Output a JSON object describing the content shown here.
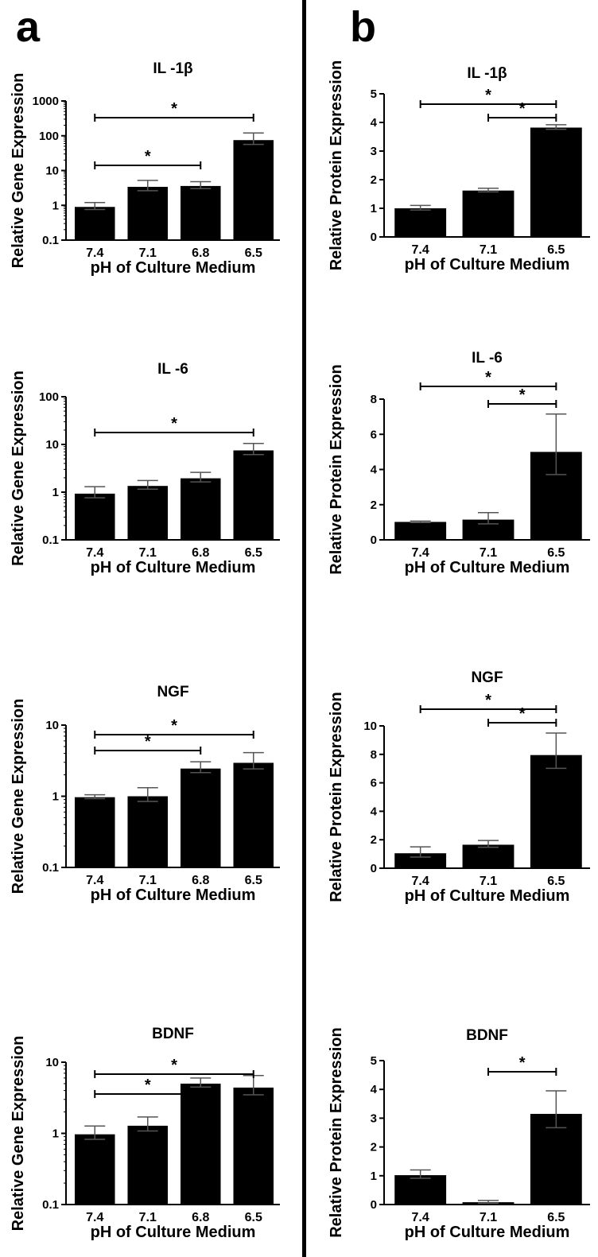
{
  "panels": [
    {
      "label": "a"
    },
    {
      "label": "b"
    }
  ],
  "chart_data": [
    {
      "panel": "a",
      "type": "bar",
      "yscale": "log",
      "title": "IL -1β",
      "ylabel": "Relative Gene Expression",
      "xlabel": "pH of Culture Medium",
      "categories": [
        "7.4",
        "7.1",
        "6.8",
        "6.5"
      ],
      "values": [
        0.9,
        3.4,
        3.6,
        75
      ],
      "errors": [
        1.2,
        5.2,
        4.8,
        120
      ],
      "ylim": [
        0.1,
        1000
      ],
      "yticks": [
        "0.1",
        "1",
        "10",
        "100",
        "1000"
      ],
      "significance": [
        {
          "from": 0,
          "to": 3,
          "label": "*"
        },
        {
          "from": 0,
          "to": 2,
          "label": "*"
        }
      ]
    },
    {
      "panel": "b",
      "type": "bar",
      "yscale": "linear",
      "title": "IL -1β",
      "ylabel": "Relative Protein Expression",
      "xlabel": "pH of Culture Medium",
      "categories": [
        "7.4",
        "7.1",
        "6.5"
      ],
      "values": [
        1.0,
        1.62,
        3.82
      ],
      "errors": [
        1.1,
        1.7,
        3.92
      ],
      "ylim": [
        0,
        5
      ],
      "yticks": [
        "0",
        "1",
        "2",
        "3",
        "4",
        "5"
      ],
      "significance": [
        {
          "from": 0,
          "to": 2,
          "label": "*"
        },
        {
          "from": 1,
          "to": 2,
          "label": "*"
        }
      ]
    },
    {
      "panel": "a",
      "type": "bar",
      "yscale": "log",
      "title": "IL -6",
      "ylabel": "Relative Gene Expression",
      "xlabel": "pH of Culture Medium",
      "categories": [
        "7.4",
        "7.1",
        "6.8",
        "6.5"
      ],
      "values": [
        0.93,
        1.35,
        1.95,
        7.5
      ],
      "errors": [
        1.3,
        1.75,
        2.6,
        10.5
      ],
      "ylim": [
        0.1,
        100
      ],
      "yticks": [
        "0.1",
        "1",
        "10",
        "100"
      ],
      "significance": [
        {
          "from": 0,
          "to": 3,
          "label": "*"
        }
      ]
    },
    {
      "panel": "b",
      "type": "bar",
      "yscale": "linear",
      "title": "IL -6",
      "ylabel": "Relative Protein Expression",
      "xlabel": "pH of Culture Medium",
      "categories": [
        "7.4",
        "7.1",
        "6.5"
      ],
      "values": [
        1.02,
        1.15,
        5.0
      ],
      "errors": [
        1.07,
        1.55,
        7.15
      ],
      "ylim": [
        0,
        8
      ],
      "yticks": [
        "0",
        "2",
        "4",
        "6",
        "8"
      ],
      "significance": [
        {
          "from": 0,
          "to": 2,
          "label": "*"
        },
        {
          "from": 1,
          "to": 2,
          "label": "*"
        }
      ]
    },
    {
      "panel": "a",
      "type": "bar",
      "yscale": "log",
      "title": "NGF",
      "ylabel": "Relative Gene Expression",
      "xlabel": "pH of Culture Medium",
      "categories": [
        "7.4",
        "7.1",
        "6.8",
        "6.5"
      ],
      "values": [
        0.97,
        1.0,
        2.45,
        2.95
      ],
      "errors": [
        1.05,
        1.32,
        3.05,
        4.1
      ],
      "ylim": [
        0.1,
        10
      ],
      "yticks": [
        "0.1",
        "1",
        "10"
      ],
      "significance": [
        {
          "from": 0,
          "to": 3,
          "label": "*"
        },
        {
          "from": 0,
          "to": 2,
          "label": "*"
        }
      ]
    },
    {
      "panel": "b",
      "type": "bar",
      "yscale": "linear",
      "title": "NGF",
      "ylabel": "Relative Protein Expression",
      "xlabel": "pH of Culture Medium",
      "categories": [
        "7.4",
        "7.1",
        "6.5"
      ],
      "values": [
        1.05,
        1.65,
        7.95
      ],
      "errors": [
        1.5,
        1.95,
        9.5
      ],
      "ylim": [
        0,
        10
      ],
      "yticks": [
        "0",
        "2",
        "4",
        "6",
        "8",
        "10"
      ],
      "significance": [
        {
          "from": 0,
          "to": 2,
          "label": "*"
        },
        {
          "from": 1,
          "to": 2,
          "label": "*"
        }
      ]
    },
    {
      "panel": "a",
      "type": "bar",
      "yscale": "log",
      "title": "BDNF",
      "ylabel": "Relative Gene Expression",
      "xlabel": "pH of Culture Medium",
      "categories": [
        "7.4",
        "7.1",
        "6.8",
        "6.5"
      ],
      "values": [
        0.97,
        1.28,
        5.0,
        4.4
      ],
      "errors": [
        1.27,
        1.7,
        6.0,
        6.5
      ],
      "ylim": [
        0.1,
        10
      ],
      "yticks": [
        "0.1",
        "1",
        "10"
      ],
      "significance": [
        {
          "from": 0,
          "to": 3,
          "label": "*"
        },
        {
          "from": 0,
          "to": 2,
          "label": "*"
        }
      ]
    },
    {
      "panel": "b",
      "type": "bar",
      "yscale": "linear",
      "title": "BDNF",
      "ylabel": "Relative Protein Expression",
      "xlabel": "pH of Culture Medium",
      "categories": [
        "7.4",
        "7.1",
        "6.5"
      ],
      "values": [
        1.02,
        0.08,
        3.15
      ],
      "errors": [
        1.2,
        0.14,
        3.95
      ],
      "ylim": [
        0,
        5
      ],
      "yticks": [
        "0",
        "1",
        "2",
        "3",
        "4",
        "5"
      ],
      "significance": [
        {
          "from": 1,
          "to": 2,
          "label": "*"
        }
      ]
    }
  ]
}
